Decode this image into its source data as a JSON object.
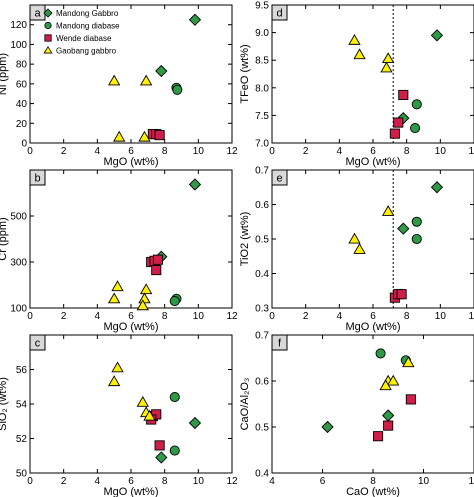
{
  "colors": {
    "Mandong Gabbro": "#2e9a48",
    "Mandong diabase": "#2e9a48",
    "Wende diabase": "#cf1e4a",
    "Gaobang gabbro": "#fff000"
  },
  "markers": {
    "Mandong Gabbro": "diamond",
    "Mandong diabase": "circle",
    "Wende diabase": "square",
    "Gaobang gabbro": "triangle"
  },
  "legend": [
    "Mandong Gabbro",
    "Mandong diabase",
    "Wende diabase",
    "Gaobang gabbro"
  ],
  "chart_data": [
    {
      "type": "scatter",
      "letter": "a",
      "xlabel": "MgO (wt%)",
      "ylabel": "Ni (ppm)",
      "xlim": [
        0,
        12
      ],
      "ylim": [
        0,
        140
      ],
      "xticks": [
        0,
        2,
        4,
        6,
        8,
        10,
        12
      ],
      "yticks": [
        0,
        20,
        40,
        60,
        80,
        100,
        120
      ],
      "series": [
        {
          "name": "Mandong Gabbro",
          "points": [
            [
              7.8,
              73
            ],
            [
              9.8,
              125
            ]
          ]
        },
        {
          "name": "Mandong diabase",
          "points": [
            [
              8.7,
              56
            ],
            [
              8.75,
              54
            ]
          ]
        },
        {
          "name": "Wende diabase",
          "points": [
            [
              7.3,
              9
            ],
            [
              7.5,
              9
            ],
            [
              7.7,
              8
            ]
          ]
        },
        {
          "name": "Gaobang gabbro",
          "points": [
            [
              5.0,
              63
            ],
            [
              6.9,
              63
            ],
            [
              5.3,
              6
            ],
            [
              6.8,
              6
            ]
          ]
        }
      ]
    },
    {
      "type": "scatter",
      "letter": "d",
      "xlabel": "MgO (wt%)",
      "ylabel": "TFeO (wt%)",
      "xlim": [
        0,
        12
      ],
      "ylim": [
        7.0,
        9.5
      ],
      "xticks": [
        0,
        2,
        4,
        6,
        8,
        10,
        12
      ],
      "yticks": [
        7.0,
        7.5,
        8.0,
        8.5,
        9.0,
        9.5
      ],
      "vline": 7.2,
      "series": [
        {
          "name": "Mandong Gabbro",
          "points": [
            [
              9.8,
              8.95
            ],
            [
              7.8,
              7.45
            ]
          ]
        },
        {
          "name": "Mandong diabase",
          "points": [
            [
              8.6,
              7.7
            ],
            [
              8.5,
              7.27
            ]
          ]
        },
        {
          "name": "Wende diabase",
          "points": [
            [
              7.8,
              7.87
            ],
            [
              7.5,
              7.37
            ],
            [
              7.3,
              7.17
            ]
          ]
        },
        {
          "name": "Gaobang gabbro",
          "points": [
            [
              4.9,
              8.86
            ],
            [
              5.2,
              8.6
            ],
            [
              6.9,
              8.53
            ],
            [
              6.8,
              8.36
            ]
          ]
        }
      ]
    },
    {
      "type": "scatter",
      "letter": "b",
      "xlabel": "MgO (wt%)",
      "ylabel": "Cr (ppm)",
      "xlim": [
        0,
        12
      ],
      "ylim": [
        100,
        700
      ],
      "xticks": [
        0,
        2,
        4,
        6,
        8,
        10,
        12
      ],
      "yticks": [
        100,
        300,
        500
      ],
      "series": [
        {
          "name": "Mandong Gabbro",
          "points": [
            [
              9.8,
              637
            ],
            [
              7.8,
              323
            ]
          ]
        },
        {
          "name": "Mandong diabase",
          "points": [
            [
              8.7,
              140
            ],
            [
              8.6,
              130
            ]
          ]
        },
        {
          "name": "Wende diabase",
          "points": [
            [
              7.2,
              300
            ],
            [
              7.4,
              305
            ],
            [
              7.6,
              310
            ],
            [
              7.5,
              265
            ]
          ]
        },
        {
          "name": "Gaobang gabbro",
          "points": [
            [
              5.2,
              193
            ],
            [
              5.0,
              140
            ],
            [
              6.9,
              180
            ],
            [
              6.8,
              140
            ],
            [
              6.7,
              110
            ]
          ]
        }
      ]
    },
    {
      "type": "scatter",
      "letter": "e",
      "xlabel": "MgO (wt%)",
      "ylabel": "TiO2 (wt%)",
      "xlim": [
        0,
        12
      ],
      "ylim": [
        0.3,
        0.7
      ],
      "xticks": [
        0,
        2,
        4,
        6,
        8,
        10,
        12
      ],
      "yticks": [
        0.3,
        0.4,
        0.5,
        0.6,
        0.7
      ],
      "vline": 7.2,
      "series": [
        {
          "name": "Mandong Gabbro",
          "points": [
            [
              9.8,
              0.65
            ],
            [
              7.8,
              0.53
            ]
          ]
        },
        {
          "name": "Mandong diabase",
          "points": [
            [
              8.6,
              0.55
            ],
            [
              8.6,
              0.5
            ]
          ]
        },
        {
          "name": "Wende diabase",
          "points": [
            [
              7.3,
              0.33
            ],
            [
              7.5,
              0.34
            ],
            [
              7.7,
              0.34
            ]
          ]
        },
        {
          "name": "Gaobang gabbro",
          "points": [
            [
              6.9,
              0.58
            ],
            [
              4.9,
              0.5
            ],
            [
              5.2,
              0.47
            ]
          ]
        }
      ]
    },
    {
      "type": "scatter",
      "letter": "c",
      "xlabel": "MgO (wt%)",
      "ylabel": "SiO₂ (wt%)",
      "xlim": [
        0,
        12
      ],
      "ylim": [
        50,
        58
      ],
      "xticks": [
        0,
        2,
        4,
        6,
        8,
        10,
        12
      ],
      "yticks": [
        50,
        52,
        54,
        56
      ],
      "series": [
        {
          "name": "Mandong Gabbro",
          "points": [
            [
              9.8,
              52.9
            ],
            [
              7.8,
              50.9
            ]
          ]
        },
        {
          "name": "Mandong diabase",
          "points": [
            [
              8.6,
              54.4
            ],
            [
              8.6,
              51.3
            ]
          ]
        },
        {
          "name": "Wende diabase",
          "points": [
            [
              7.3,
              53.3
            ],
            [
              7.5,
              53.4
            ],
            [
              7.2,
              53.1
            ],
            [
              7.7,
              51.6
            ]
          ]
        },
        {
          "name": "Gaobang gabbro",
          "points": [
            [
              5.2,
              56.1
            ],
            [
              5.0,
              55.3
            ],
            [
              6.7,
              54.1
            ],
            [
              6.9,
              53.5
            ],
            [
              7.1,
              53.3
            ]
          ]
        }
      ]
    },
    {
      "type": "scatter",
      "letter": "f",
      "xlabel": "CaO (wt%)",
      "ylabel": "CaO/Al₂O₃",
      "xlim": [
        4,
        12
      ],
      "ylim": [
        0.4,
        0.7
      ],
      "xticks": [
        4,
        6,
        8,
        10,
        12
      ],
      "yticks": [
        0.4,
        0.5,
        0.6,
        0.7
      ],
      "series": [
        {
          "name": "Mandong Gabbro",
          "points": [
            [
              6.2,
              0.5
            ],
            [
              8.6,
              0.525
            ]
          ]
        },
        {
          "name": "Mandong diabase",
          "points": [
            [
              8.3,
              0.66
            ],
            [
              9.3,
              0.645
            ]
          ]
        },
        {
          "name": "Wende diabase",
          "points": [
            [
              8.2,
              0.48
            ],
            [
              8.6,
              0.503
            ],
            [
              9.5,
              0.56
            ]
          ]
        },
        {
          "name": "Gaobang gabbro",
          "points": [
            [
              9.4,
              0.64
            ],
            [
              8.6,
              0.6
            ],
            [
              8.8,
              0.6
            ],
            [
              8.5,
              0.59
            ]
          ]
        }
      ]
    }
  ]
}
